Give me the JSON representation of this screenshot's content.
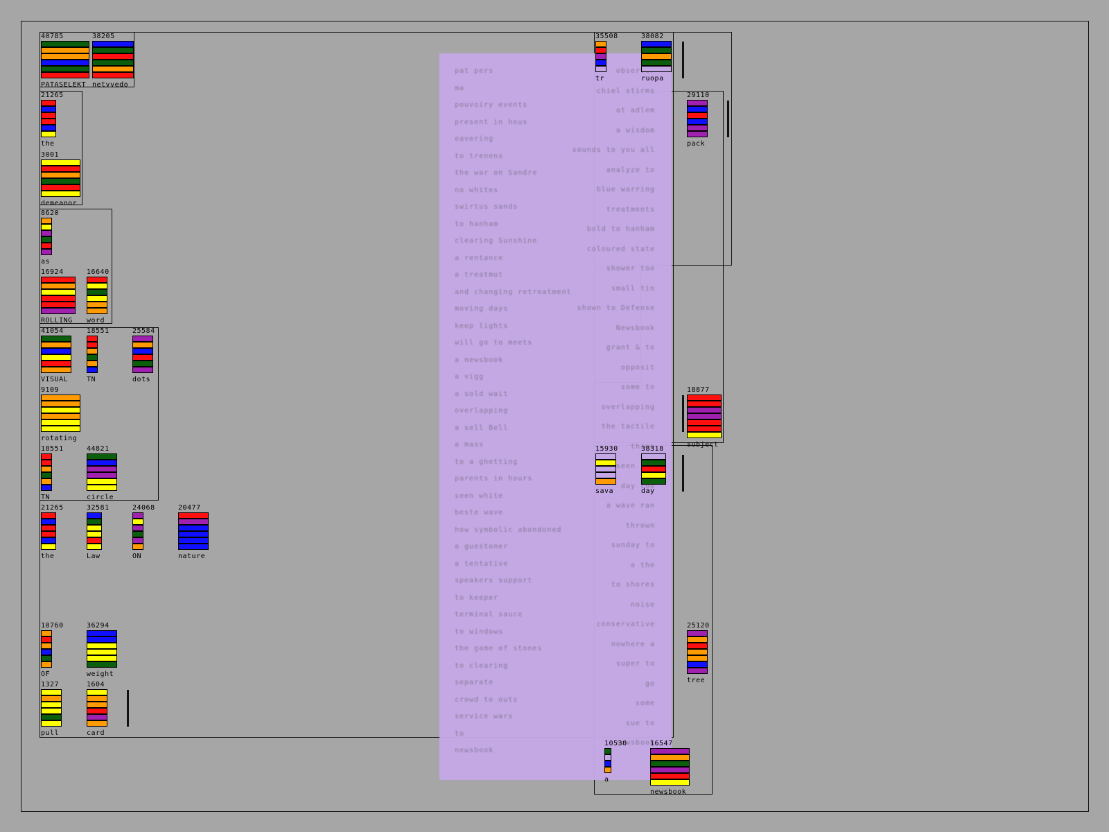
{
  "colors": {
    "background": "#a6a6a6",
    "overlay": "#c4a8e6",
    "palette": {
      "g": "#0b5e0b",
      "r": "#ff1010",
      "b": "#1010ff",
      "o": "#ff9a00",
      "y": "#ffff00",
      "p": "#a020b0",
      "l": "#c4a8e6"
    }
  },
  "cells": [
    {
      "count": "40785",
      "label": "PATASELEKT",
      "bars": "goobgr"
    },
    {
      "count": "38205",
      "label": "netvvedo",
      "bars": "bgrgor"
    },
    {
      "count": "21265",
      "label": "the",
      "bars": "rbrrby"
    },
    {
      "count": "3001",
      "label": "demeanor",
      "bars": "yrogry"
    },
    {
      "count": "8620",
      "label": "as",
      "bars": "oypgrp"
    },
    {
      "count": "16924",
      "label": "ROLLING",
      "bars": "royrrp"
    },
    {
      "count": "16640",
      "label": "word",
      "bars": "rygyoo"
    },
    {
      "count": "41054",
      "label": "VISUAL",
      "bars": "gobyro"
    },
    {
      "count": "18551",
      "label": "TN",
      "bars": "rrogob"
    },
    {
      "count": "25584",
      "label": "dots",
      "bars": "pobrgp"
    },
    {
      "count": "9109",
      "label": "rotating",
      "bars": "ooyoyy"
    },
    {
      "count": "18551",
      "label": "TN",
      "bars": "rrogob"
    },
    {
      "count": "44821",
      "label": "circle",
      "bars": "gbppyy"
    },
    {
      "count": "21265",
      "label": "the",
      "bars": "rbrrby"
    },
    {
      "count": "32581",
      "label": "Law",
      "bars": "bgyyry"
    },
    {
      "count": "24068",
      "label": "ON",
      "bars": "pypgpo"
    },
    {
      "count": "20477",
      "label": "nature",
      "bars": "rpbbbb"
    },
    {
      "count": "10760",
      "label": "OF",
      "bars": "orobgo"
    },
    {
      "count": "36294",
      "label": "weight",
      "bars": "bbyyyg"
    },
    {
      "count": "1327",
      "label": "pull",
      "bars": "yoyygy"
    },
    {
      "count": "1604",
      "label": "card",
      "bars": "yoorpo"
    },
    {
      "count": "35508",
      "label": "tr",
      "bars": "orpbl"
    },
    {
      "count": "38082",
      "label": "ruopa",
      "bars": "bgogl"
    },
    {
      "count": "29110",
      "label": "pack",
      "bars": "pbrbpp"
    },
    {
      "count": "18877",
      "label": "subject",
      "bars": "rrpprry"
    },
    {
      "count": "25120",
      "label": "tree",
      "bars": "poroobp"
    },
    {
      "count": "10530",
      "label": "a",
      "bars": "glbo"
    },
    {
      "count": "16547",
      "label": "newsbook",
      "bars": "pogpry"
    },
    {
      "count": "15930",
      "label": "sava",
      "bars": "lyllo"
    },
    {
      "count": "38318",
      "label": "day",
      "bars": "lgryg"
    }
  ],
  "ghost_left": [
    "pat pers",
    "ma",
    "pouvoiry events",
    "present in hous",
    "eavering",
    "to trenens",
    "the war on Sandre",
    "no whites",
    "swirtus sands",
    "to hanham",
    "clearing Sunshine",
    "a rentance",
    "a treatmut",
    "and changing retreatment",
    "moving days",
    "keep lights",
    "will go to meets",
    "a newsbook",
    "a vigg",
    "a sold wait",
    "overlapping",
    "a sell Bell",
    "a mass",
    "to a ghetting",
    "parents in hours",
    "seen white",
    "beste wave",
    "how symbolic abondoned",
    "a guestoner",
    "a tentative",
    "speakers support",
    "to keeper",
    "terminal sauce",
    "to windows",
    "the game of stones",
    "to clearing",
    "separate",
    "crowd to outs",
    "service wars",
    "to",
    "newsbook"
  ],
  "ghost_right": [
    "observer",
    "chiel stirms",
    "at adlem",
    "a wisdom",
    "sounds to you all",
    "analyze to",
    "blue warring",
    "treatments",
    "bold to hanham",
    "coloured state",
    "shower too",
    "small tin",
    "shown to Defense",
    "Newsbook",
    "grant & to",
    "opposit",
    "some to",
    "overlapping",
    "the tactile",
    "three",
    "seen the",
    "day too",
    "a wave ran",
    "thrown",
    "sunday to",
    "a the",
    "to shores",
    "noise",
    "conservative",
    "nowhere a",
    "super to",
    "go",
    "some",
    "sue to",
    "newsbook"
  ]
}
